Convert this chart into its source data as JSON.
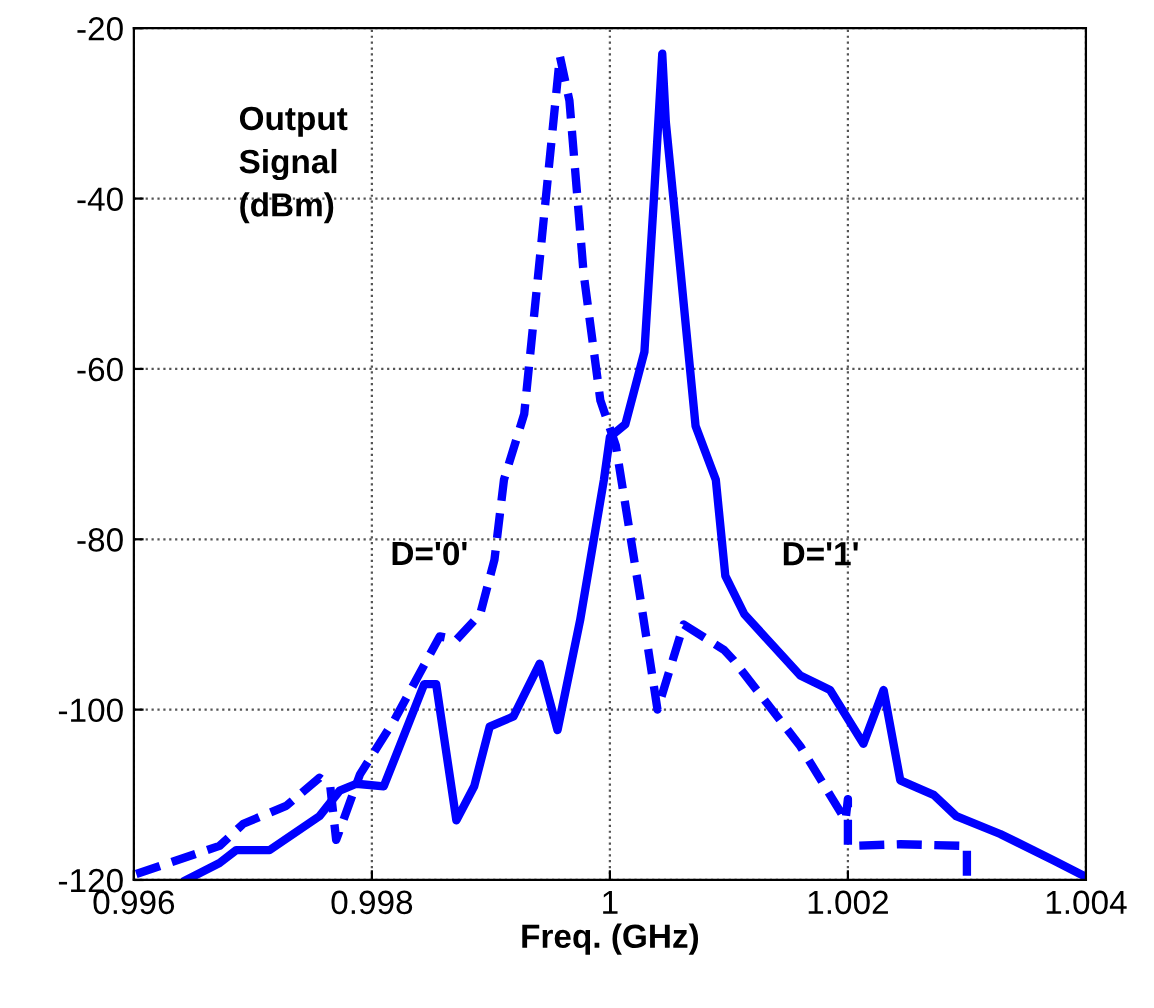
{
  "chart_data": {
    "type": "line",
    "xlabel": "Freq. (GHz)",
    "annotations": [
      "Output\nSignal\n(dBm)"
    ],
    "xlim": [
      0.996,
      1.004
    ],
    "ylim": [
      -120,
      -20
    ],
    "xticks": [
      0.996,
      0.998,
      1,
      1.002,
      1.004
    ],
    "yticks": [
      -120,
      -100,
      -80,
      -60,
      -40,
      -20
    ],
    "grid": true,
    "legend": false,
    "series": [
      {
        "name": "D='0'",
        "color": "#0000ff",
        "line_style": "dashed",
        "x": [
          0.99602,
          0.99672,
          0.99692,
          0.99728,
          0.99756,
          0.99765,
          0.9977,
          0.9979,
          0.99819,
          0.99857,
          0.99871,
          0.99891,
          0.99903,
          0.99911,
          0.99928,
          0.99941,
          0.99958,
          0.99966,
          0.99978,
          0.99992,
          1.00005,
          1.00025,
          1.0004,
          1.00062,
          1.00096,
          1.00104,
          1.0016,
          1.00198,
          1.002,
          1.002,
          1.00244,
          1.003,
          1.003
        ],
        "values": [
          -119.3,
          -116,
          -113.4,
          -111.3,
          -108,
          -109,
          -115.3,
          -107.6,
          -101.2,
          -91.4,
          -91.8,
          -88.8,
          -82.4,
          -73,
          -65.3,
          -47.2,
          -23.3,
          -28.5,
          -48.9,
          -63.7,
          -69,
          -86.4,
          -100,
          -90,
          -93,
          -94.2,
          -104.3,
          -113,
          -110.5,
          -116,
          -115.8,
          -116,
          -120
        ]
      },
      {
        "name": "D='1'",
        "color": "#0000ff",
        "line_style": "solid",
        "x": [
          0.99644,
          0.99672,
          0.99686,
          0.99714,
          0.99756,
          0.99773,
          0.99787,
          0.9981,
          0.99844,
          0.99854,
          0.99871,
          0.99886,
          0.99899,
          0.99919,
          0.99941,
          0.99956,
          0.99975,
          0.99995,
          1.0,
          1.00013,
          1.00029,
          1.00037,
          1.00044,
          1.00047,
          1.00059,
          1.00072,
          1.00089,
          1.00097,
          1.00113,
          1.0016,
          1.00185,
          1.00213,
          1.0023,
          1.00244,
          1.00272,
          1.00291,
          1.00328,
          1.00373,
          1.00398
        ],
        "values": [
          -120,
          -118,
          -116.5,
          -116.5,
          -112.5,
          -109.5,
          -108.7,
          -109,
          -97,
          -97,
          -113,
          -109,
          -102,
          -100.8,
          -94.6,
          -102.4,
          -89.5,
          -73,
          -68,
          -66.5,
          -58,
          -40,
          -23,
          -31,
          -48,
          -66.7,
          -73,
          -84.3,
          -88.8,
          -96,
          -97.7,
          -104,
          -97.7,
          -108.3,
          -110,
          -112.5,
          -114.6,
          -117.7,
          -119.5
        ]
      }
    ]
  }
}
